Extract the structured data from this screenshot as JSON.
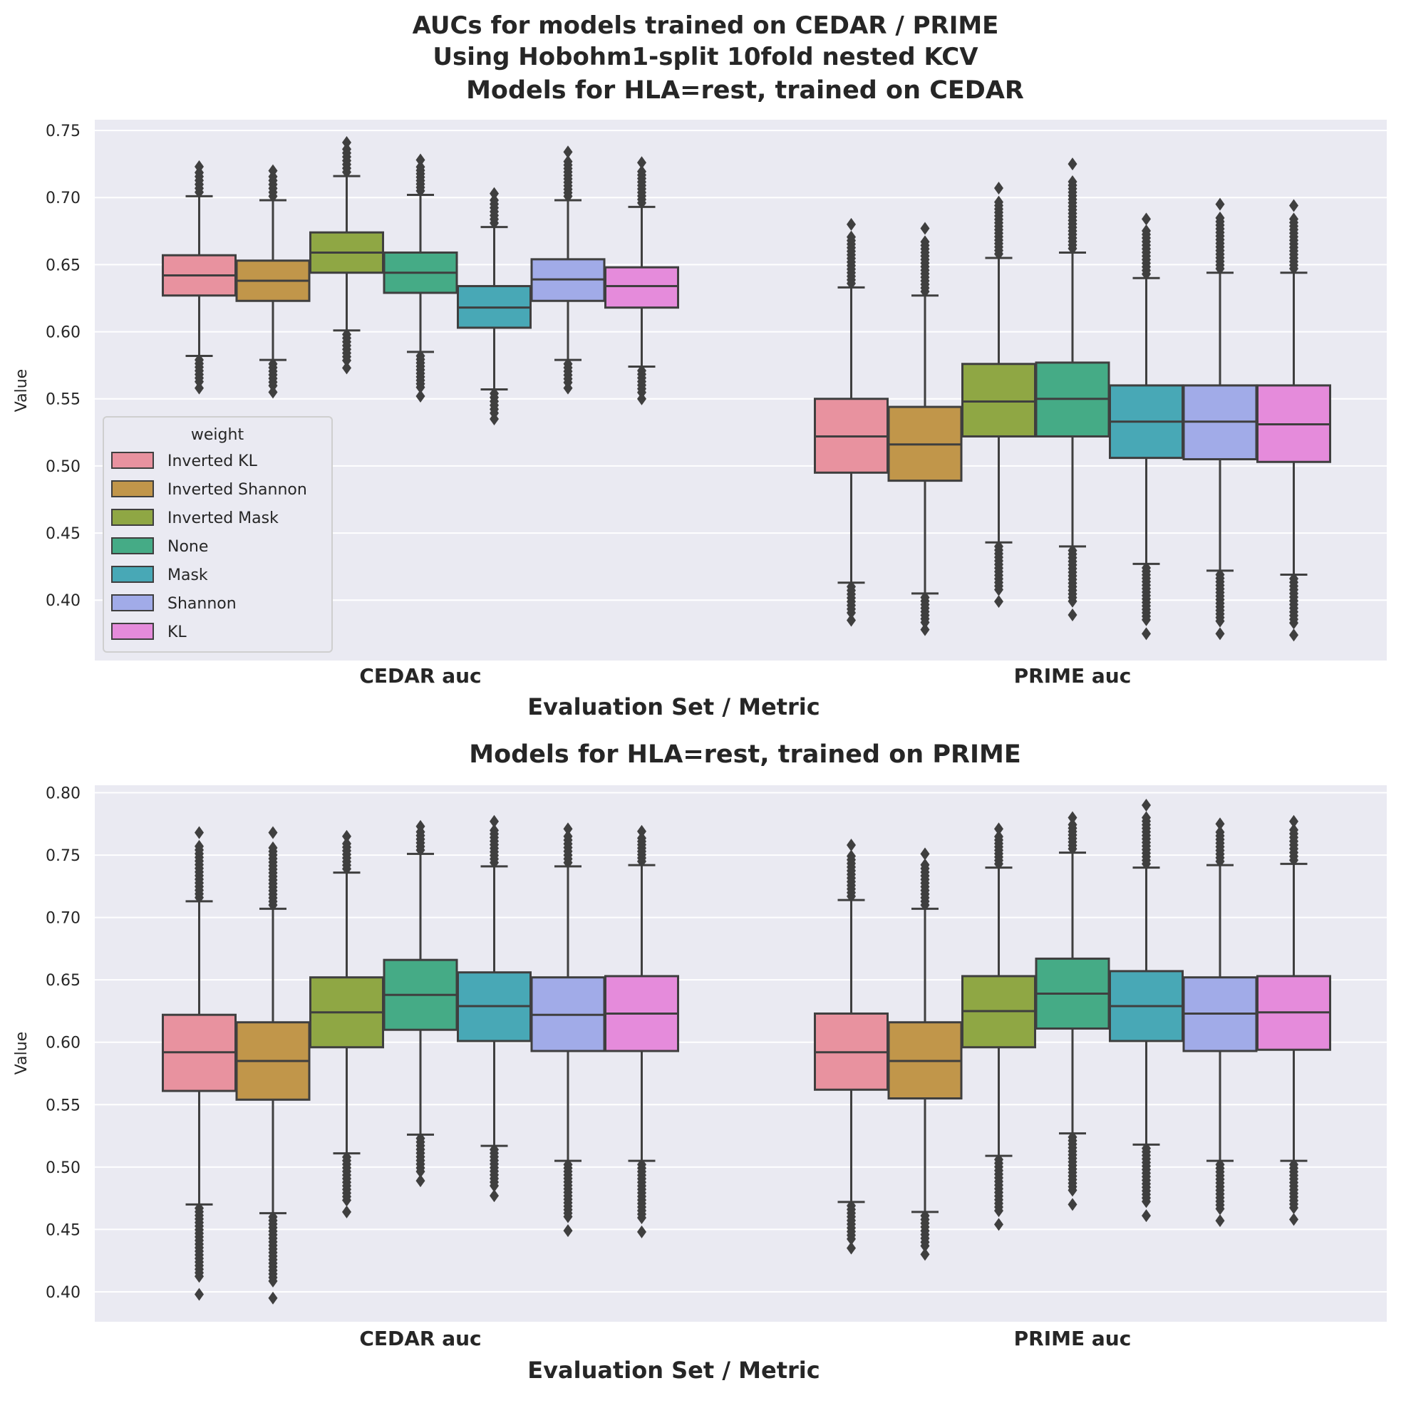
{
  "figure": {
    "suptitle_line1": "AUCs for models trained on CEDAR / PRIME",
    "suptitle_line2": "Using Hobohm1-split 10fold nested KCV"
  },
  "legend": {
    "title": "weight",
    "items": [
      "Inverted KL",
      "Inverted Shannon",
      "Inverted Mask",
      "None",
      "Mask",
      "Shannon",
      "KL"
    ]
  },
  "colors": {
    "Inverted KL": "#e8929f",
    "Inverted Shannon": "#c1964a",
    "Inverted Mask": "#8fa744",
    "None": "#45ab86",
    "Mask": "#48a8b6",
    "Shannon": "#a1abe8",
    "KL": "#e58bdb",
    "background": "#eaeaf2",
    "edge": "#3f3f3f"
  },
  "chart_data": [
    {
      "type": "box",
      "title": "Models for HLA=rest, trained on CEDAR",
      "xlabel": "Evaluation Set / Metric",
      "ylabel": "Value",
      "categories": [
        "CEDAR auc",
        "PRIME auc"
      ],
      "ylim": [
        0.355,
        0.758
      ],
      "yticks": [
        "0.40",
        "0.45",
        "0.50",
        "0.55",
        "0.60",
        "0.65",
        "0.70",
        "0.75"
      ],
      "grid": true,
      "legend_position": "lower-left",
      "series": [
        {
          "name": "Inverted KL",
          "boxes": [
            {
              "whisker_low": 0.582,
              "q1": 0.627,
              "median": 0.642,
              "q3": 0.657,
              "whisker_high": 0.701,
              "outlier_min": 0.558,
              "outlier_max": 0.723
            },
            {
              "whisker_low": 0.413,
              "q1": 0.495,
              "median": 0.522,
              "q3": 0.55,
              "whisker_high": 0.633,
              "outlier_min": 0.385,
              "outlier_max": 0.68
            }
          ]
        },
        {
          "name": "Inverted Shannon",
          "boxes": [
            {
              "whisker_low": 0.579,
              "q1": 0.623,
              "median": 0.638,
              "q3": 0.653,
              "whisker_high": 0.698,
              "outlier_min": 0.555,
              "outlier_max": 0.72
            },
            {
              "whisker_low": 0.405,
              "q1": 0.489,
              "median": 0.516,
              "q3": 0.544,
              "whisker_high": 0.627,
              "outlier_min": 0.378,
              "outlier_max": 0.677
            }
          ]
        },
        {
          "name": "Inverted Mask",
          "boxes": [
            {
              "whisker_low": 0.601,
              "q1": 0.644,
              "median": 0.659,
              "q3": 0.674,
              "whisker_high": 0.716,
              "outlier_min": 0.573,
              "outlier_max": 0.741
            },
            {
              "whisker_low": 0.443,
              "q1": 0.522,
              "median": 0.548,
              "q3": 0.576,
              "whisker_high": 0.655,
              "outlier_min": 0.399,
              "outlier_max": 0.707
            }
          ]
        },
        {
          "name": "None",
          "boxes": [
            {
              "whisker_low": 0.585,
              "q1": 0.629,
              "median": 0.644,
              "q3": 0.659,
              "whisker_high": 0.702,
              "outlier_min": 0.552,
              "outlier_max": 0.728
            },
            {
              "whisker_low": 0.44,
              "q1": 0.522,
              "median": 0.55,
              "q3": 0.577,
              "whisker_high": 0.659,
              "outlier_min": 0.389,
              "outlier_max": 0.725
            }
          ]
        },
        {
          "name": "Mask",
          "boxes": [
            {
              "whisker_low": 0.557,
              "q1": 0.603,
              "median": 0.618,
              "q3": 0.634,
              "whisker_high": 0.678,
              "outlier_min": 0.535,
              "outlier_max": 0.703
            },
            {
              "whisker_low": 0.427,
              "q1": 0.506,
              "median": 0.533,
              "q3": 0.56,
              "whisker_high": 0.64,
              "outlier_min": 0.375,
              "outlier_max": 0.684
            }
          ]
        },
        {
          "name": "Shannon",
          "boxes": [
            {
              "whisker_low": 0.579,
              "q1": 0.623,
              "median": 0.639,
              "q3": 0.654,
              "whisker_high": 0.698,
              "outlier_min": 0.558,
              "outlier_max": 0.734
            },
            {
              "whisker_low": 0.422,
              "q1": 0.505,
              "median": 0.533,
              "q3": 0.56,
              "whisker_high": 0.644,
              "outlier_min": 0.375,
              "outlier_max": 0.695
            }
          ]
        },
        {
          "name": "KL",
          "boxes": [
            {
              "whisker_low": 0.574,
              "q1": 0.618,
              "median": 0.634,
              "q3": 0.648,
              "whisker_high": 0.693,
              "outlier_min": 0.55,
              "outlier_max": 0.726
            },
            {
              "whisker_low": 0.419,
              "q1": 0.503,
              "median": 0.531,
              "q3": 0.56,
              "whisker_high": 0.644,
              "outlier_min": 0.374,
              "outlier_max": 0.694
            }
          ]
        }
      ]
    },
    {
      "type": "box",
      "title": "Models for HLA=rest, trained on PRIME",
      "xlabel": "Evaluation Set / Metric",
      "ylabel": "Value",
      "categories": [
        "CEDAR auc",
        "PRIME auc"
      ],
      "ylim": [
        0.376,
        0.806
      ],
      "yticks": [
        "0.40",
        "0.45",
        "0.50",
        "0.55",
        "0.60",
        "0.65",
        "0.70",
        "0.75",
        "0.80"
      ],
      "grid": true,
      "series": [
        {
          "name": "Inverted KL",
          "boxes": [
            {
              "whisker_low": 0.47,
              "q1": 0.561,
              "median": 0.592,
              "q3": 0.622,
              "whisker_high": 0.713,
              "outlier_min": 0.398,
              "outlier_max": 0.768
            },
            {
              "whisker_low": 0.472,
              "q1": 0.562,
              "median": 0.592,
              "q3": 0.623,
              "whisker_high": 0.714,
              "outlier_min": 0.435,
              "outlier_max": 0.758
            }
          ]
        },
        {
          "name": "Inverted Shannon",
          "boxes": [
            {
              "whisker_low": 0.463,
              "q1": 0.554,
              "median": 0.585,
              "q3": 0.616,
              "whisker_high": 0.707,
              "outlier_min": 0.395,
              "outlier_max": 0.768
            },
            {
              "whisker_low": 0.464,
              "q1": 0.555,
              "median": 0.585,
              "q3": 0.616,
              "whisker_high": 0.707,
              "outlier_min": 0.43,
              "outlier_max": 0.751
            }
          ]
        },
        {
          "name": "Inverted Mask",
          "boxes": [
            {
              "whisker_low": 0.511,
              "q1": 0.596,
              "median": 0.624,
              "q3": 0.652,
              "whisker_high": 0.736,
              "outlier_min": 0.464,
              "outlier_max": 0.765
            },
            {
              "whisker_low": 0.509,
              "q1": 0.596,
              "median": 0.625,
              "q3": 0.653,
              "whisker_high": 0.74,
              "outlier_min": 0.454,
              "outlier_max": 0.771
            }
          ]
        },
        {
          "name": "None",
          "boxes": [
            {
              "whisker_low": 0.526,
              "q1": 0.61,
              "median": 0.638,
              "q3": 0.666,
              "whisker_high": 0.751,
              "outlier_min": 0.489,
              "outlier_max": 0.773
            },
            {
              "whisker_low": 0.527,
              "q1": 0.611,
              "median": 0.639,
              "q3": 0.667,
              "whisker_high": 0.752,
              "outlier_min": 0.47,
              "outlier_max": 0.78
            }
          ]
        },
        {
          "name": "Mask",
          "boxes": [
            {
              "whisker_low": 0.517,
              "q1": 0.601,
              "median": 0.629,
              "q3": 0.656,
              "whisker_high": 0.741,
              "outlier_min": 0.477,
              "outlier_max": 0.777
            },
            {
              "whisker_low": 0.518,
              "q1": 0.601,
              "median": 0.629,
              "q3": 0.657,
              "whisker_high": 0.74,
              "outlier_min": 0.461,
              "outlier_max": 0.79
            }
          ]
        },
        {
          "name": "Shannon",
          "boxes": [
            {
              "whisker_low": 0.505,
              "q1": 0.593,
              "median": 0.622,
              "q3": 0.652,
              "whisker_high": 0.741,
              "outlier_min": 0.449,
              "outlier_max": 0.771
            },
            {
              "whisker_low": 0.505,
              "q1": 0.593,
              "median": 0.623,
              "q3": 0.652,
              "whisker_high": 0.742,
              "outlier_min": 0.457,
              "outlier_max": 0.775
            }
          ]
        },
        {
          "name": "KL",
          "boxes": [
            {
              "whisker_low": 0.505,
              "q1": 0.593,
              "median": 0.623,
              "q3": 0.653,
              "whisker_high": 0.742,
              "outlier_min": 0.448,
              "outlier_max": 0.769
            },
            {
              "whisker_low": 0.505,
              "q1": 0.594,
              "median": 0.624,
              "q3": 0.653,
              "whisker_high": 0.743,
              "outlier_min": 0.458,
              "outlier_max": 0.777
            }
          ]
        }
      ]
    }
  ]
}
